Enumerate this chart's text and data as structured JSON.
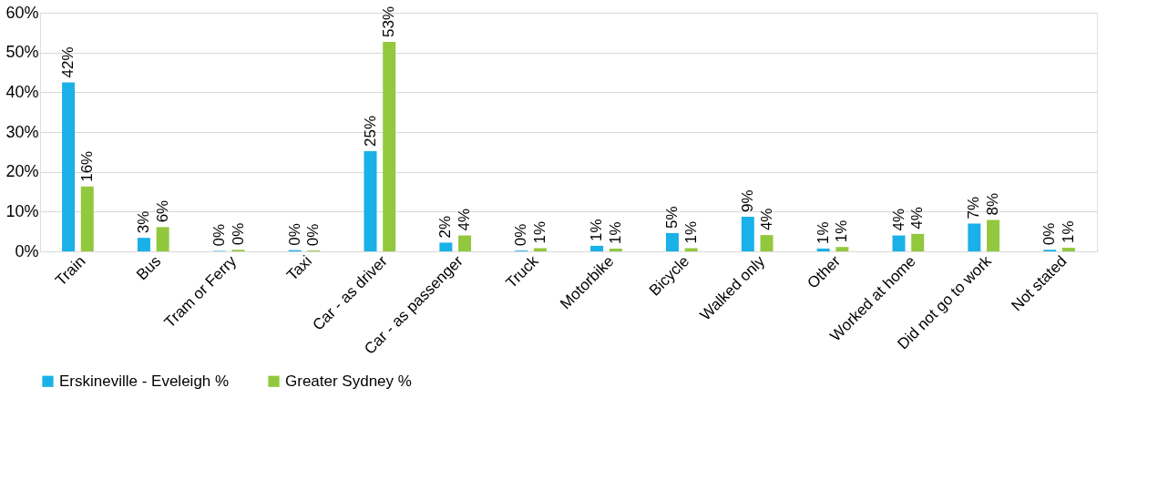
{
  "chart_data": {
    "type": "bar",
    "categories": [
      "Train",
      "Bus",
      "Tram or Ferry",
      "Taxi",
      "Car - as driver",
      "Car - as passenger",
      "Truck",
      "Motorbike",
      "Bicycle",
      "Walked only",
      "Other",
      "Worked at home",
      "Did not go to work",
      "Not stated"
    ],
    "series": [
      {
        "name": "Erskineville - Eveleigh %",
        "color": "#1ab0e8",
        "values": [
          42.5,
          3.4,
          0.1,
          0.3,
          25.2,
          2.2,
          0.2,
          1.4,
          4.6,
          8.7,
          0.7,
          4.0,
          7.0,
          0.4
        ],
        "value_labels": [
          "42%",
          "3%",
          "0%",
          "0%",
          "25%",
          "2%",
          "0%",
          "1%",
          "5%",
          "9%",
          "1%",
          "4%",
          "7%",
          "0%"
        ]
      },
      {
        "name": "Greater Sydney %",
        "color": "#92c83e",
        "values": [
          16.3,
          6.1,
          0.4,
          0.2,
          52.7,
          4.0,
          0.8,
          0.7,
          0.8,
          4.1,
          1.1,
          4.4,
          7.9,
          0.9
        ],
        "value_labels": [
          "16%",
          "6%",
          "0%",
          "0%",
          "53%",
          "4%",
          "1%",
          "1%",
          "1%",
          "4%",
          "1%",
          "4%",
          "8%",
          "1%"
        ]
      }
    ],
    "ylim": [
      0,
      60
    ],
    "yticks": [
      {
        "value": 0,
        "label": "0%"
      },
      {
        "value": 10,
        "label": "10%"
      },
      {
        "value": 20,
        "label": "20%"
      },
      {
        "value": 30,
        "label": "30%"
      },
      {
        "value": 40,
        "label": "40%"
      },
      {
        "value": 50,
        "label": "50%"
      },
      {
        "value": 60,
        "label": "60%"
      }
    ],
    "grid": "y",
    "legend": "bottom"
  }
}
